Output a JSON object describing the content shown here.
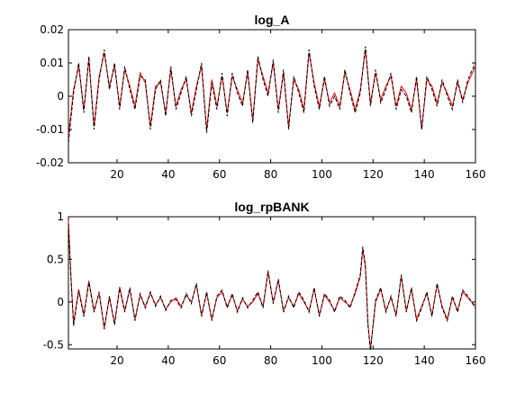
{
  "figure": {
    "background": "#ffffff"
  },
  "chart_data": [
    {
      "type": "line",
      "title": "log_A",
      "xlabel": "",
      "ylabel": "",
      "xlim": [
        1,
        160
      ],
      "ylim": [
        -0.02,
        0.02
      ],
      "xticks": [
        20,
        40,
        60,
        80,
        100,
        120,
        140,
        160
      ],
      "xtick_labels": [
        "20",
        "40",
        "60",
        "80",
        "100",
        "120",
        "140",
        "160"
      ],
      "yticks": [
        -0.02,
        -0.01,
        0,
        0.01,
        0.02
      ],
      "ytick_labels": [
        "-0.02",
        "-0.01",
        "0",
        "0.01",
        "0.02"
      ],
      "grid": false,
      "legend": "none",
      "series": [
        {
          "color": "#ff0000",
          "style": "solid",
          "x": [
            1,
            3,
            5,
            7,
            9,
            11,
            13,
            15,
            17,
            19,
            21,
            23,
            25,
            27,
            29,
            31,
            33,
            35,
            37,
            39,
            41,
            43,
            45,
            47,
            49,
            51,
            53,
            55,
            57,
            59,
            61,
            63,
            65,
            67,
            69,
            71,
            73,
            75,
            77,
            79,
            81,
            83,
            85,
            87,
            89,
            91,
            93,
            95,
            97,
            99,
            101,
            103,
            105,
            107,
            109,
            111,
            113,
            115,
            117,
            119,
            121,
            123,
            125,
            127,
            129,
            131,
            133,
            135,
            137,
            139,
            141,
            143,
            145,
            147,
            149,
            151,
            153,
            155,
            157,
            160
          ],
          "y": [
            -0.012,
            0.002,
            0.009,
            -0.004,
            0.011,
            -0.009,
            0.006,
            0.013,
            0.003,
            0.009,
            -0.003,
            0.008,
            0.003,
            -0.003,
            0.007,
            0.004,
            -0.009,
            0.003,
            0.004,
            -0.005,
            0.008,
            -0.003,
            0.002,
            0.005,
            -0.005,
            0.003,
            0.009,
            -0.01,
            0.005,
            -0.003,
            0.006,
            -0.005,
            0.006,
            0.002,
            -0.002,
            0.007,
            -0.007,
            0.011,
            0.006,
            0.001,
            0.01,
            -0.004,
            0.007,
            -0.009,
            0.005,
            0.002,
            -0.004,
            0.013,
            0.004,
            -0.003,
            0.005,
            -0.002,
            0.001,
            -0.003,
            0.007,
            0.002,
            -0.004,
            0.002,
            0.014,
            -0.002,
            0.007,
            -0.001,
            0.003,
            0.006,
            -0.003,
            0.003,
            0.001,
            -0.004,
            0.005,
            -0.01,
            0.005,
            0.003,
            -0.002,
            0.004,
            0.001,
            -0.003,
            0.004,
            -0.001,
            0.004,
            0.009
          ]
        },
        {
          "color": "#000000",
          "style": "dashed",
          "x": [
            1,
            3,
            5,
            7,
            9,
            11,
            13,
            15,
            17,
            19,
            21,
            23,
            25,
            27,
            29,
            31,
            33,
            35,
            37,
            39,
            41,
            43,
            45,
            47,
            49,
            51,
            53,
            55,
            57,
            59,
            61,
            63,
            65,
            67,
            69,
            71,
            73,
            75,
            77,
            79,
            81,
            83,
            85,
            87,
            89,
            91,
            93,
            95,
            97,
            99,
            101,
            103,
            105,
            107,
            109,
            111,
            113,
            115,
            117,
            119,
            121,
            123,
            125,
            127,
            129,
            131,
            133,
            135,
            137,
            139,
            141,
            143,
            145,
            147,
            149,
            151,
            153,
            155,
            157,
            160
          ],
          "y": [
            -0.014,
            0.001,
            0.01,
            -0.005,
            0.012,
            -0.01,
            0.005,
            0.014,
            0.002,
            0.01,
            -0.004,
            0.009,
            0.002,
            -0.004,
            0.006,
            0.005,
            -0.01,
            0.002,
            0.005,
            -0.006,
            0.009,
            -0.004,
            0.001,
            0.006,
            -0.006,
            0.002,
            0.01,
            -0.011,
            0.004,
            -0.004,
            0.007,
            -0.006,
            0.007,
            0.001,
            -0.003,
            0.008,
            -0.008,
            0.012,
            0.005,
            0.0,
            0.011,
            -0.005,
            0.008,
            -0.01,
            0.006,
            0.001,
            -0.005,
            0.014,
            0.003,
            -0.004,
            0.006,
            -0.003,
            0.0,
            -0.004,
            0.008,
            0.001,
            -0.005,
            0.001,
            0.015,
            -0.003,
            0.008,
            -0.002,
            0.002,
            0.007,
            -0.004,
            0.002,
            0.0,
            -0.005,
            0.006,
            -0.01,
            0.006,
            0.002,
            -0.003,
            0.005,
            0.0,
            -0.004,
            0.005,
            -0.002,
            0.005,
            0.01
          ]
        }
      ]
    },
    {
      "type": "line",
      "title": "log_rpBANK",
      "xlabel": "",
      "ylabel": "",
      "xlim": [
        1,
        160
      ],
      "ylim": [
        -0.55,
        1
      ],
      "xticks": [
        20,
        40,
        60,
        80,
        100,
        120,
        140,
        160
      ],
      "xtick_labels": [
        "20",
        "40",
        "60",
        "80",
        "100",
        "120",
        "140",
        "160"
      ],
      "yticks": [
        -0.5,
        0,
        0.5,
        1
      ],
      "ytick_labels": [
        "-0.5",
        "0",
        "0.5",
        "1"
      ],
      "grid": false,
      "legend": "none",
      "series": [
        {
          "color": "#ff0000",
          "style": "solid",
          "x": [
            1,
            2,
            3,
            5,
            7,
            9,
            11,
            13,
            15,
            17,
            19,
            21,
            23,
            25,
            27,
            29,
            31,
            33,
            35,
            37,
            39,
            41,
            43,
            45,
            47,
            49,
            51,
            53,
            55,
            57,
            59,
            61,
            63,
            65,
            67,
            69,
            71,
            73,
            75,
            77,
            79,
            81,
            83,
            85,
            87,
            89,
            91,
            93,
            95,
            97,
            99,
            101,
            103,
            105,
            107,
            109,
            111,
            113,
            115,
            116,
            117,
            118,
            119,
            121,
            123,
            125,
            127,
            129,
            131,
            133,
            135,
            137,
            139,
            141,
            143,
            145,
            147,
            149,
            151,
            153,
            155,
            157,
            160
          ],
          "y": [
            0.95,
            0.3,
            -0.25,
            0.15,
            -0.15,
            0.25,
            -0.1,
            0.1,
            -0.3,
            0.05,
            -0.25,
            0.18,
            -0.1,
            0.15,
            -0.2,
            0.08,
            -0.05,
            0.1,
            -0.03,
            0.05,
            -0.08,
            0.0,
            0.05,
            -0.05,
            0.08,
            0.0,
            0.2,
            -0.15,
            0.1,
            -0.2,
            0.05,
            0.12,
            -0.05,
            0.08,
            -0.1,
            0.03,
            -0.05,
            0.0,
            0.1,
            -0.05,
            0.35,
            0.0,
            0.25,
            -0.1,
            0.05,
            -0.05,
            0.1,
            0.0,
            -0.1,
            0.15,
            -0.15,
            0.08,
            0.0,
            -0.1,
            0.05,
            0.0,
            -0.05,
            0.1,
            0.3,
            0.62,
            0.4,
            -0.25,
            -0.55,
            0.0,
            0.15,
            -0.1,
            0.05,
            -0.15,
            0.3,
            -0.1,
            0.15,
            -0.2,
            -0.05,
            0.1,
            -0.15,
            0.2,
            -0.05,
            -0.2,
            0.05,
            -0.1,
            0.12,
            0.05,
            -0.05
          ]
        },
        {
          "color": "#000000",
          "style": "dashed",
          "x": [
            1,
            2,
            3,
            5,
            7,
            9,
            11,
            13,
            15,
            17,
            19,
            21,
            23,
            25,
            27,
            29,
            31,
            33,
            35,
            37,
            39,
            41,
            43,
            45,
            47,
            49,
            51,
            53,
            55,
            57,
            59,
            61,
            63,
            65,
            67,
            69,
            71,
            73,
            75,
            77,
            79,
            81,
            83,
            85,
            87,
            89,
            91,
            93,
            95,
            97,
            99,
            101,
            103,
            105,
            107,
            109,
            111,
            113,
            115,
            116,
            117,
            118,
            119,
            121,
            123,
            125,
            127,
            129,
            131,
            133,
            135,
            137,
            139,
            141,
            143,
            145,
            147,
            149,
            151,
            153,
            155,
            157,
            160
          ],
          "y": [
            0.92,
            0.28,
            -0.28,
            0.13,
            -0.17,
            0.23,
            -0.12,
            0.12,
            -0.32,
            0.07,
            -0.27,
            0.16,
            -0.12,
            0.17,
            -0.22,
            0.1,
            -0.07,
            0.12,
            -0.05,
            0.07,
            -0.1,
            0.02,
            0.03,
            -0.07,
            0.1,
            -0.02,
            0.22,
            -0.17,
            0.12,
            -0.22,
            0.07,
            0.14,
            -0.07,
            0.1,
            -0.12,
            0.05,
            -0.07,
            0.02,
            0.12,
            -0.07,
            0.37,
            -0.02,
            0.27,
            -0.12,
            0.07,
            -0.07,
            0.12,
            0.02,
            -0.12,
            0.17,
            -0.17,
            0.1,
            0.02,
            -0.12,
            0.07,
            0.02,
            -0.07,
            0.12,
            0.32,
            0.65,
            0.42,
            -0.27,
            -0.57,
            0.02,
            0.17,
            -0.12,
            0.07,
            -0.17,
            0.32,
            -0.12,
            0.17,
            -0.22,
            -0.07,
            0.12,
            -0.17,
            0.22,
            -0.07,
            -0.22,
            0.07,
            -0.12,
            0.14,
            0.07,
            -0.07
          ]
        }
      ]
    }
  ]
}
